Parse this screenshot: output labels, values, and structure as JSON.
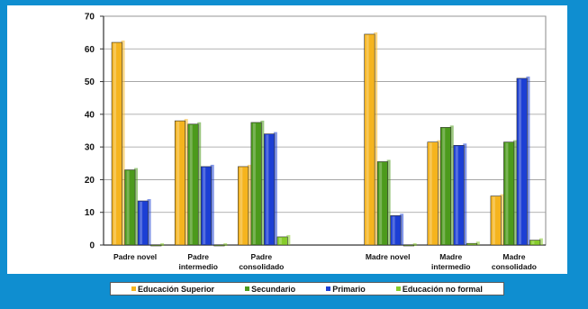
{
  "chart_data": {
    "type": "bar",
    "categories": [
      [
        "Padre novel"
      ],
      [
        "Padre",
        "intermedio"
      ],
      [
        "Padre",
        "consolidado"
      ],
      [
        ""
      ],
      [
        "Madre novel"
      ],
      [
        "Madre",
        "intermedio"
      ],
      [
        "Madre",
        "consolidado"
      ]
    ],
    "series": [
      {
        "name": "Educación Superior",
        "color": "#f5b41e",
        "values": [
          62,
          38,
          24,
          null,
          64.5,
          31.5,
          15
        ]
      },
      {
        "name": "Secundario",
        "color": "#4c9a1c",
        "values": [
          23,
          37,
          37.5,
          null,
          25.5,
          36,
          31.5
        ]
      },
      {
        "name": "Primario",
        "color": "#1c3fd4",
        "values": [
          13.5,
          24,
          34,
          null,
          9,
          30.5,
          51
        ]
      },
      {
        "name": "Educación no formal",
        "color": "#86cc2a",
        "values": [
          0,
          0,
          2.5,
          null,
          0,
          0.5,
          1.5
        ]
      }
    ],
    "ylim": [
      0,
      70
    ],
    "yticks": [
      0,
      10,
      20,
      30,
      40,
      50,
      60,
      70
    ],
    "grid": true,
    "legend_position": "bottom",
    "xlabel": "",
    "ylabel": "",
    "title": ""
  }
}
